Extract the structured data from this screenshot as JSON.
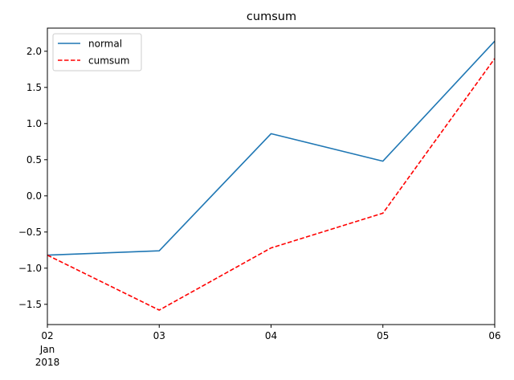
{
  "chart_data": {
    "type": "line",
    "title": "cumsum",
    "xlabel": "",
    "ylabel": "",
    "x": [
      "2018-01-02",
      "2018-01-03",
      "2018-01-04",
      "2018-01-05",
      "2018-01-06"
    ],
    "x_tick_labels": [
      "02",
      "03",
      "04",
      "05",
      "06"
    ],
    "x_tick_sublabels": [
      "Jan",
      "2018"
    ],
    "ylim": [
      -1.78,
      2.32
    ],
    "y_ticks": [
      -1.5,
      -1.0,
      -0.5,
      0.0,
      0.5,
      1.0,
      1.5,
      2.0
    ],
    "y_tick_labels": [
      "−1.5",
      "−1.0",
      "−0.5",
      "0.0",
      "0.5",
      "1.0",
      "1.5",
      "2.0"
    ],
    "grid": false,
    "legend_position": "top-left",
    "series": [
      {
        "name": "normal",
        "color": "#1f77b4",
        "style": "solid",
        "values": [
          -0.82,
          -0.76,
          0.86,
          0.48,
          2.14
        ]
      },
      {
        "name": "cumsum",
        "color": "#ff0000",
        "style": "dashed",
        "values": [
          -0.82,
          -1.58,
          -0.72,
          -0.24,
          1.9
        ]
      }
    ]
  }
}
